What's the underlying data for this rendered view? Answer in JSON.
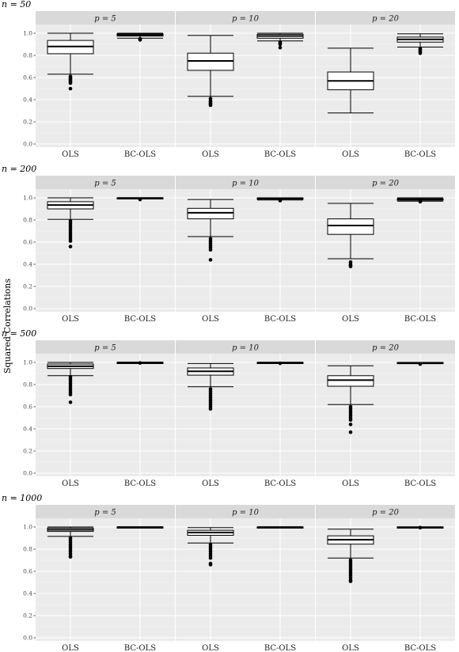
{
  "chart_data": {
    "type": "boxplot",
    "ylabel": "Squared Correlations",
    "ylim": [
      0,
      1
    ],
    "y_ticks": [
      "0.0",
      "0.2",
      "0.4",
      "0.6",
      "0.8",
      "1.0"
    ],
    "categories": [
      "OLS",
      "BC-OLS"
    ],
    "rows": [
      {
        "label": "n = 50",
        "panels": [
          {
            "strip": "p = 5",
            "boxes": [
              {
                "category": "OLS",
                "whisker_low": 0.63,
                "q1": 0.815,
                "median": 0.88,
                "q3": 0.935,
                "whisker_high": 1.0,
                "outliers": [
                  0.61,
                  0.6,
                  0.59,
                  0.58,
                  0.57,
                  0.56,
                  0.55,
                  0.5
                ]
              },
              {
                "category": "BC-OLS",
                "whisker_low": 0.955,
                "q1": 0.975,
                "median": 0.985,
                "q3": 0.995,
                "whisker_high": 1.0,
                "outliers": [
                  0.95,
                  0.945,
                  0.94
                ]
              }
            ]
          },
          {
            "strip": "p = 10",
            "boxes": [
              {
                "category": "OLS",
                "whisker_low": 0.43,
                "q1": 0.665,
                "median": 0.75,
                "q3": 0.82,
                "whisker_high": 0.98,
                "outliers": [
                  0.41,
                  0.39,
                  0.38,
                  0.37,
                  0.36,
                  0.35
                ]
              },
              {
                "category": "BC-OLS",
                "whisker_low": 0.93,
                "q1": 0.955,
                "median": 0.975,
                "q3": 0.99,
                "whisker_high": 1.0,
                "outliers": [
                  0.92,
                  0.91,
                  0.9,
                  0.87
                ]
              }
            ]
          },
          {
            "strip": "p = 20",
            "boxes": [
              {
                "category": "OLS",
                "whisker_low": 0.28,
                "q1": 0.49,
                "median": 0.57,
                "q3": 0.65,
                "whisker_high": 0.865,
                "outliers": []
              },
              {
                "category": "BC-OLS",
                "whisker_low": 0.875,
                "q1": 0.92,
                "median": 0.945,
                "q3": 0.965,
                "whisker_high": 0.995,
                "outliers": [
                  0.86,
                  0.85,
                  0.84,
                  0.83,
                  0.82
                ]
              }
            ]
          }
        ]
      },
      {
        "label": "n = 200",
        "panels": [
          {
            "strip": "p = 5",
            "boxes": [
              {
                "category": "OLS",
                "whisker_low": 0.805,
                "q1": 0.9,
                "median": 0.935,
                "q3": 0.965,
                "whisker_high": 1.0,
                "outliers": [
                  0.79,
                  0.77,
                  0.75,
                  0.73,
                  0.71,
                  0.69,
                  0.67,
                  0.65,
                  0.63,
                  0.61,
                  0.56
                ]
              },
              {
                "category": "BC-OLS",
                "whisker_low": 0.99,
                "q1": 0.995,
                "median": 0.998,
                "q3": 1.0,
                "whisker_high": 1.0,
                "outliers": [
                  0.985
                ]
              }
            ]
          },
          {
            "strip": "p = 10",
            "boxes": [
              {
                "category": "OLS",
                "whisker_low": 0.65,
                "q1": 0.81,
                "median": 0.865,
                "q3": 0.905,
                "whisker_high": 0.985,
                "outliers": [
                  0.63,
                  0.61,
                  0.59,
                  0.57,
                  0.55,
                  0.53,
                  0.44
                ]
              },
              {
                "category": "BC-OLS",
                "whisker_low": 0.98,
                "q1": 0.99,
                "median": 0.995,
                "q3": 0.998,
                "whisker_high": 1.0,
                "outliers": [
                  0.975
                ]
              }
            ]
          },
          {
            "strip": "p = 20",
            "boxes": [
              {
                "category": "OLS",
                "whisker_low": 0.45,
                "q1": 0.67,
                "median": 0.75,
                "q3": 0.81,
                "whisker_high": 0.95,
                "outliers": [
                  0.42,
                  0.4,
                  0.39,
                  0.38
                ]
              },
              {
                "category": "BC-OLS",
                "whisker_low": 0.97,
                "q1": 0.978,
                "median": 0.985,
                "q3": 0.992,
                "whisker_high": 1.0,
                "outliers": [
                  0.965
                ]
              }
            ]
          }
        ]
      },
      {
        "label": "n = 500",
        "panels": [
          {
            "strip": "p = 5",
            "boxes": [
              {
                "category": "OLS",
                "whisker_low": 0.88,
                "q1": 0.945,
                "median": 0.965,
                "q3": 0.985,
                "whisker_high": 1.0,
                "outliers": [
                  0.87,
                  0.85,
                  0.83,
                  0.81,
                  0.79,
                  0.77,
                  0.75,
                  0.73,
                  0.71,
                  0.64
                ]
              },
              {
                "category": "BC-OLS",
                "whisker_low": 0.997,
                "q1": 0.998,
                "median": 0.999,
                "q3": 1.0,
                "whisker_high": 1.0,
                "outliers": [
                  0.995
                ]
              }
            ]
          },
          {
            "strip": "p = 10",
            "boxes": [
              {
                "category": "OLS",
                "whisker_low": 0.78,
                "q1": 0.885,
                "median": 0.92,
                "q3": 0.95,
                "whisker_high": 0.99,
                "outliers": [
                  0.76,
                  0.74,
                  0.72,
                  0.7,
                  0.68,
                  0.66,
                  0.64,
                  0.62,
                  0.6,
                  0.58
                ]
              },
              {
                "category": "BC-OLS",
                "whisker_low": 0.995,
                "q1": 0.997,
                "median": 0.998,
                "q3": 1.0,
                "whisker_high": 1.0,
                "outliers": [
                  0.992
                ]
              }
            ]
          },
          {
            "strip": "p = 20",
            "boxes": [
              {
                "category": "OLS",
                "whisker_low": 0.62,
                "q1": 0.785,
                "median": 0.84,
                "q3": 0.88,
                "whisker_high": 0.97,
                "outliers": [
                  0.6,
                  0.58,
                  0.56,
                  0.54,
                  0.52,
                  0.5,
                  0.48,
                  0.44,
                  0.37
                ]
              },
              {
                "category": "BC-OLS",
                "whisker_low": 0.99,
                "q1": 0.993,
                "median": 0.996,
                "q3": 0.999,
                "whisker_high": 1.0,
                "outliers": [
                  0.985
                ]
              }
            ]
          }
        ]
      },
      {
        "label": "n = 1000",
        "panels": [
          {
            "strip": "p = 5",
            "boxes": [
              {
                "category": "OLS",
                "whisker_low": 0.915,
                "q1": 0.96,
                "median": 0.975,
                "q3": 0.99,
                "whisker_high": 1.0,
                "outliers": [
                  0.9,
                  0.88,
                  0.86,
                  0.84,
                  0.82,
                  0.8,
                  0.78,
                  0.76,
                  0.74,
                  0.73
                ]
              },
              {
                "category": "BC-OLS",
                "whisker_low": 0.998,
                "q1": 0.999,
                "median": 0.9995,
                "q3": 1.0,
                "whisker_high": 1.0,
                "outliers": []
              }
            ]
          },
          {
            "strip": "p = 10",
            "boxes": [
              {
                "category": "OLS",
                "whisker_low": 0.855,
                "q1": 0.925,
                "median": 0.95,
                "q3": 0.97,
                "whisker_high": 0.995,
                "outliers": [
                  0.84,
                  0.82,
                  0.8,
                  0.78,
                  0.76,
                  0.74,
                  0.72,
                  0.67,
                  0.66
                ]
              },
              {
                "category": "BC-OLS",
                "whisker_low": 0.997,
                "q1": 0.998,
                "median": 0.999,
                "q3": 1.0,
                "whisker_high": 1.0,
                "outliers": []
              }
            ]
          },
          {
            "strip": "p = 20",
            "boxes": [
              {
                "category": "OLS",
                "whisker_low": 0.72,
                "q1": 0.845,
                "median": 0.885,
                "q3": 0.92,
                "whisker_high": 0.98,
                "outliers": [
                  0.7,
                  0.68,
                  0.66,
                  0.64,
                  0.62,
                  0.6,
                  0.58,
                  0.56,
                  0.54,
                  0.52,
                  0.51
                ]
              },
              {
                "category": "BC-OLS",
                "whisker_low": 0.995,
                "q1": 0.997,
                "median": 0.998,
                "q3": 1.0,
                "whisker_high": 1.0,
                "outliers": [
                  0.994
                ]
              }
            ]
          }
        ]
      }
    ]
  }
}
